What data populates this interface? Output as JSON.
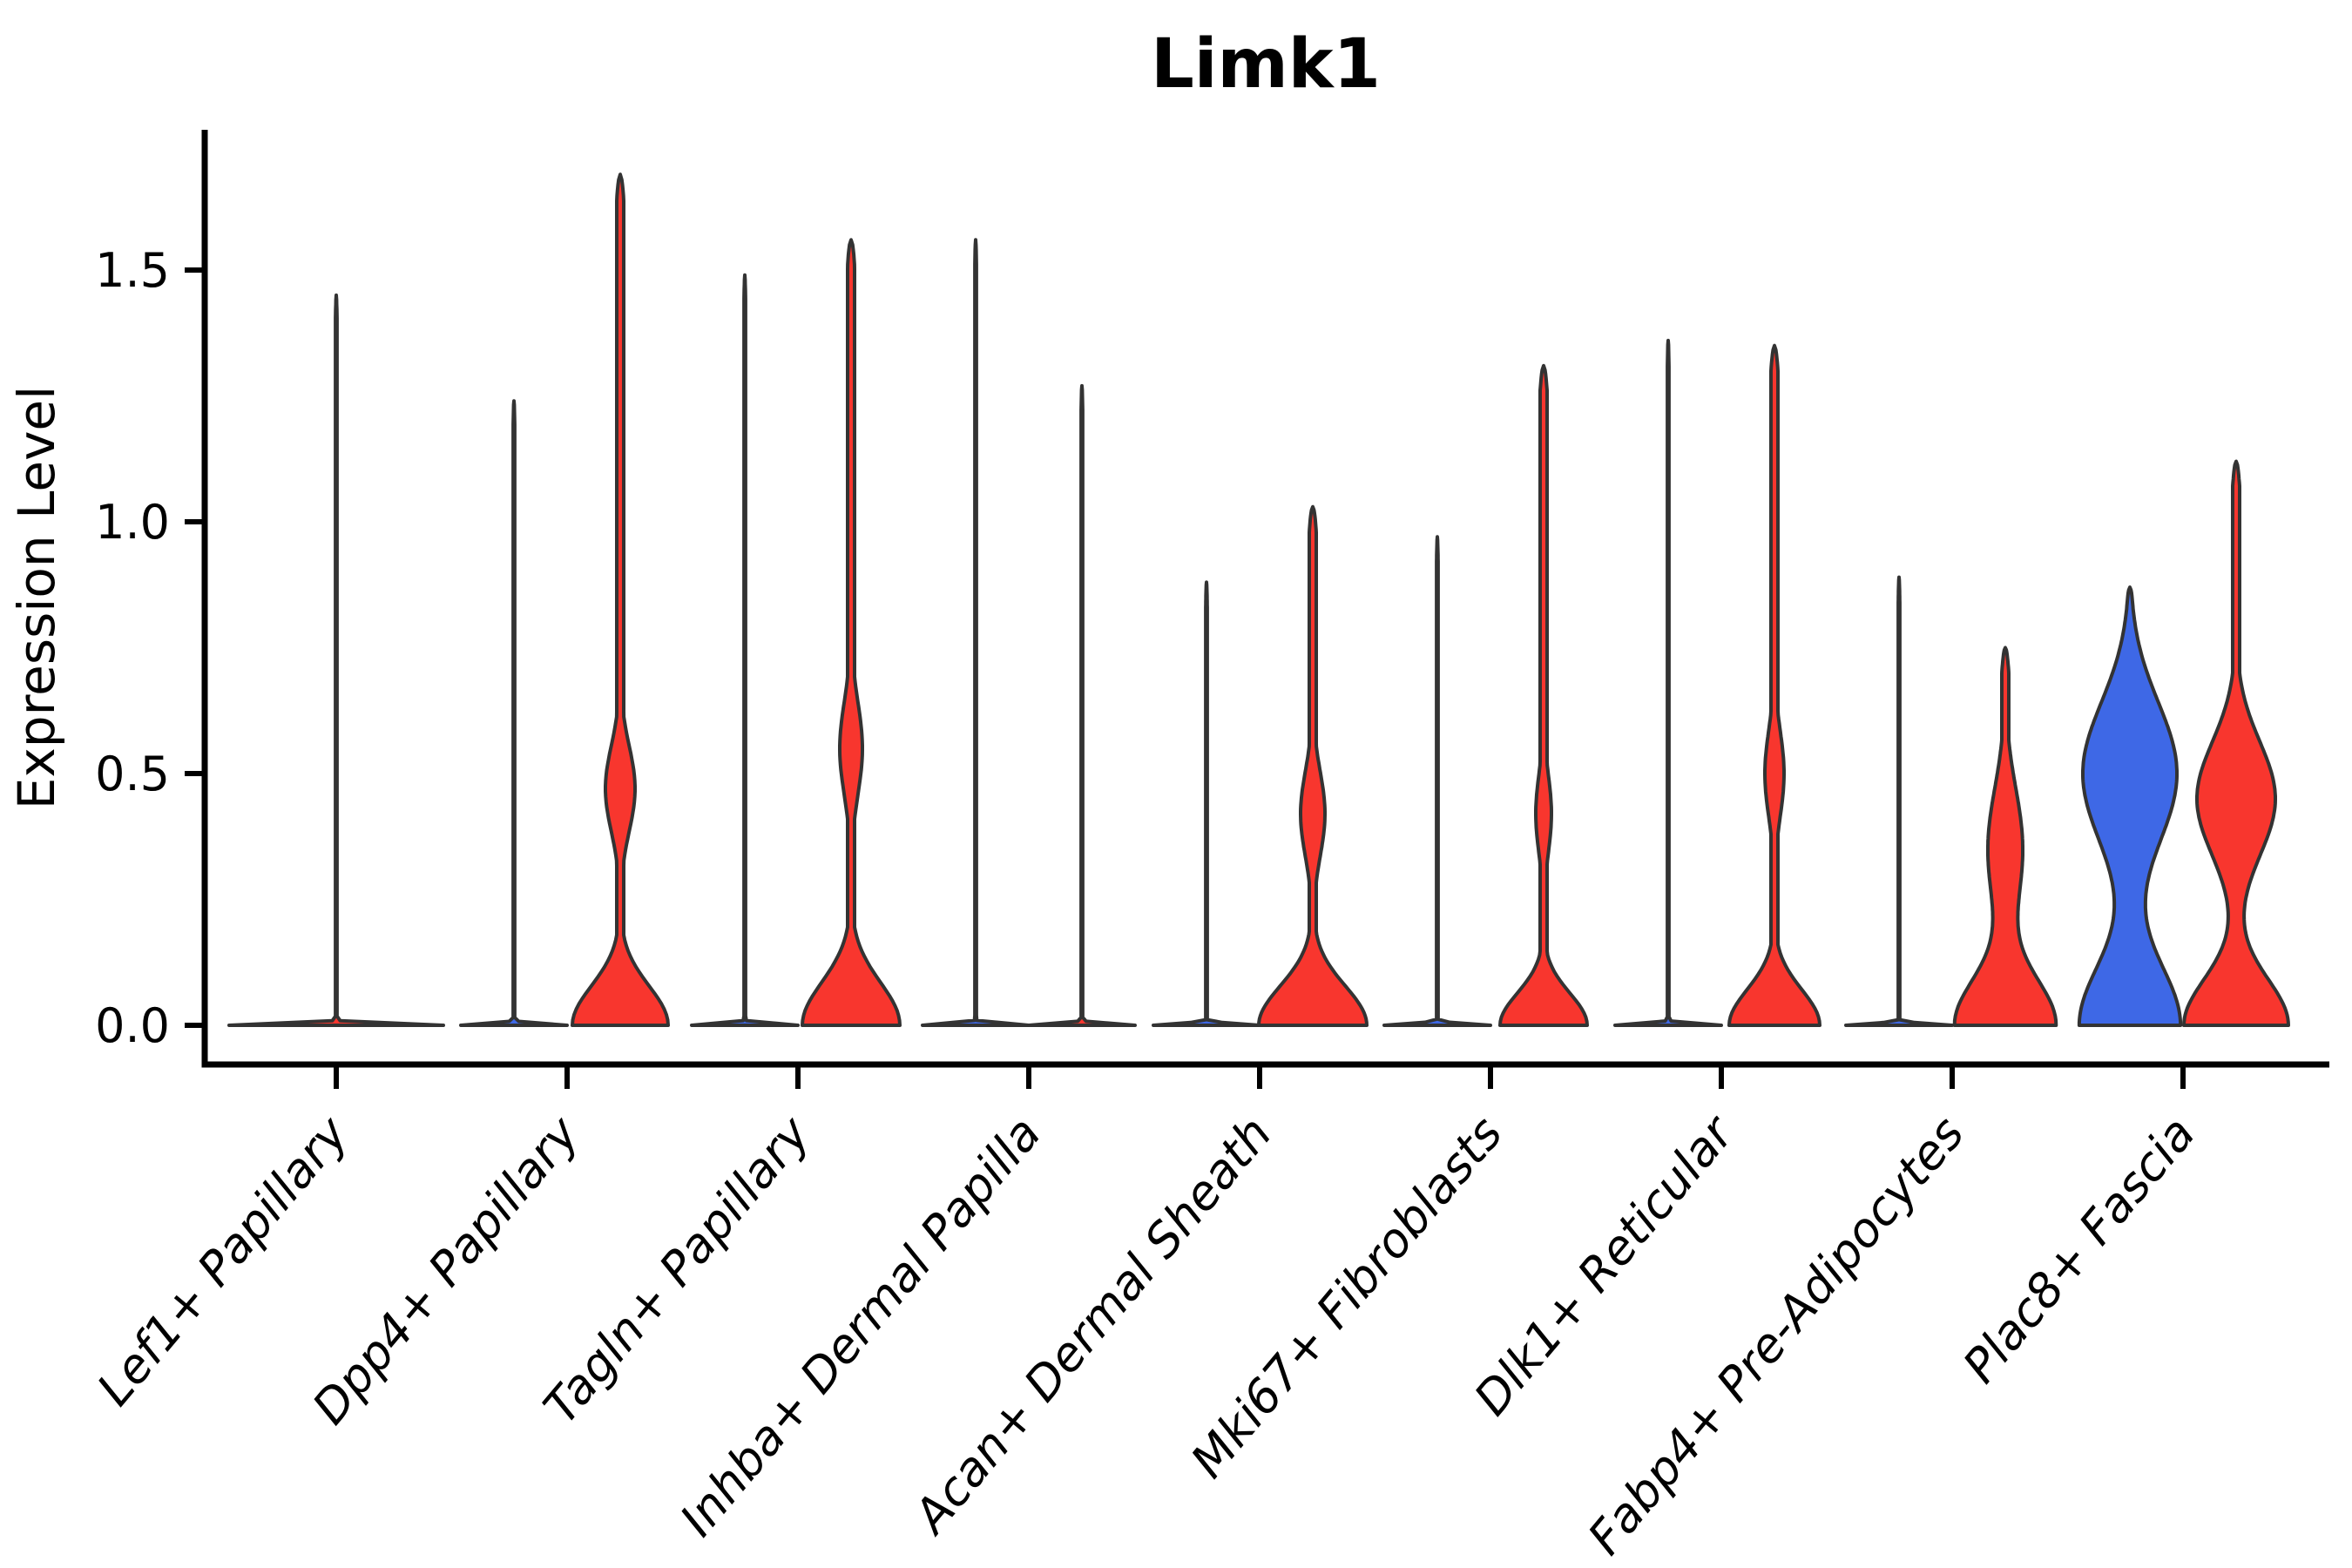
{
  "chart_data": {
    "type": "violin",
    "title": "Limk1",
    "ylabel": "Expression Level",
    "xlabel": "",
    "grid": false,
    "legend_position": "none",
    "background_color": "#ffffff",
    "axis_color": "#000000",
    "edge_color": "#333333",
    "group_colors": {
      "left": "#3E68E6",
      "right": "#F8362E"
    },
    "ylim": [
      -0.08,
      1.78
    ],
    "yticks": [
      {
        "value": 0.0,
        "label": "0.0"
      },
      {
        "value": 0.5,
        "label": "0.5"
      },
      {
        "value": 1.0,
        "label": "1.0"
      },
      {
        "value": 1.5,
        "label": "1.5"
      }
    ],
    "categories": [
      "Lef1+ Papillary",
      "Dpp4+ Papillary",
      "Tagln+ Papillary",
      "Inhba+ Dermal Papilla",
      "Acan+ Dermal Sheath",
      "Mki67+ Fibroblasts",
      "Dlk1+ Reticular",
      "Fabp4+ Pre-Adipocytes",
      "Plac8+ Fascia"
    ],
    "violins": [
      {
        "category": "Lef1+ Papillary",
        "items": [
          {
            "group": "single",
            "color": "#F8362E",
            "peak": 1.45,
            "shape": "collapsed",
            "base_halfwidth": 123
          }
        ]
      },
      {
        "category": "Dpp4+ Papillary",
        "items": [
          {
            "group": "left",
            "color": "#3E68E6",
            "peak": 1.24,
            "shape": "collapsed",
            "base_halfwidth": 61
          },
          {
            "group": "right",
            "color": "#F8362E",
            "peak": 1.69,
            "shape": "body",
            "base_halfwidth": 55,
            "bell_sigma": 0.11,
            "bulge_center": 0.47,
            "bulge_halfwidth": 17,
            "bulge_sigma": 0.12
          }
        ]
      },
      {
        "category": "Tagln+ Papillary",
        "items": [
          {
            "group": "left",
            "color": "#3E68E6",
            "peak": 1.49,
            "shape": "collapsed",
            "base_halfwidth": 61
          },
          {
            "group": "right",
            "color": "#F8362E",
            "peak": 1.56,
            "shape": "body",
            "base_halfwidth": 56,
            "bell_sigma": 0.12,
            "bulge_center": 0.55,
            "bulge_halfwidth": 13,
            "bulge_sigma": 0.13
          }
        ]
      },
      {
        "category": "Inhba+ Dermal Papilla",
        "items": [
          {
            "group": "left",
            "color": "#3E68E6",
            "peak": 1.56,
            "shape": "collapsed",
            "base_halfwidth": 61
          },
          {
            "group": "right",
            "color": "#F8362E",
            "peak": 1.27,
            "shape": "collapsed",
            "base_halfwidth": 61
          }
        ]
      },
      {
        "category": "Acan+ Dermal Sheath",
        "items": [
          {
            "group": "left",
            "color": "#3E68E6",
            "peak": 0.88,
            "shape": "collapsed",
            "base_halfwidth": 61
          },
          {
            "group": "right",
            "color": "#F8362E",
            "peak": 1.03,
            "shape": "body",
            "base_halfwidth": 62,
            "bell_sigma": 0.11,
            "bulge_center": 0.42,
            "bulge_halfwidth": 14,
            "bulge_sigma": 0.12
          }
        ]
      },
      {
        "category": "Mki67+ Fibroblasts",
        "items": [
          {
            "group": "left",
            "color": "#3E68E6",
            "peak": 0.97,
            "shape": "collapsed",
            "base_halfwidth": 61
          },
          {
            "group": "right",
            "color": "#F8362E",
            "peak": 1.31,
            "shape": "body",
            "base_halfwidth": 50,
            "bell_sigma": 0.09,
            "bulge_center": 0.42,
            "bulge_halfwidth": 9,
            "bulge_sigma": 0.11
          }
        ]
      },
      {
        "category": "Dlk1+ Reticular",
        "items": [
          {
            "group": "left",
            "color": "#3E68E6",
            "peak": 1.36,
            "shape": "collapsed",
            "base_halfwidth": 61
          },
          {
            "group": "right",
            "color": "#F8362E",
            "peak": 1.35,
            "shape": "body",
            "base_halfwidth": 52,
            "bell_sigma": 0.1,
            "bulge_center": 0.5,
            "bulge_halfwidth": 11,
            "bulge_sigma": 0.12
          }
        ]
      },
      {
        "category": "Fabp4+ Pre-Adipocytes",
        "items": [
          {
            "group": "left",
            "color": "#3E68E6",
            "peak": 0.89,
            "shape": "collapsed",
            "base_halfwidth": 61
          },
          {
            "group": "right",
            "color": "#F8362E",
            "peak": 0.75,
            "shape": "body",
            "base_halfwidth": 58,
            "bell_sigma": 0.13,
            "bulge_center": 0.35,
            "bulge_halfwidth": 20,
            "bulge_sigma": 0.17
          }
        ]
      },
      {
        "category": "Plac8+ Fascia",
        "items": [
          {
            "group": "left",
            "color": "#3E68E6",
            "peak": 0.87,
            "shape": "body",
            "base_halfwidth": 58,
            "bell_sigma": 0.17,
            "bulge_center": 0.5,
            "bulge_halfwidth": 54,
            "bulge_sigma": 0.2
          },
          {
            "group": "right",
            "color": "#F8362E",
            "peak": 1.12,
            "shape": "body",
            "base_halfwidth": 60,
            "bell_sigma": 0.13,
            "bulge_center": 0.45,
            "bulge_halfwidth": 45,
            "bulge_sigma": 0.16
          }
        ]
      }
    ]
  }
}
